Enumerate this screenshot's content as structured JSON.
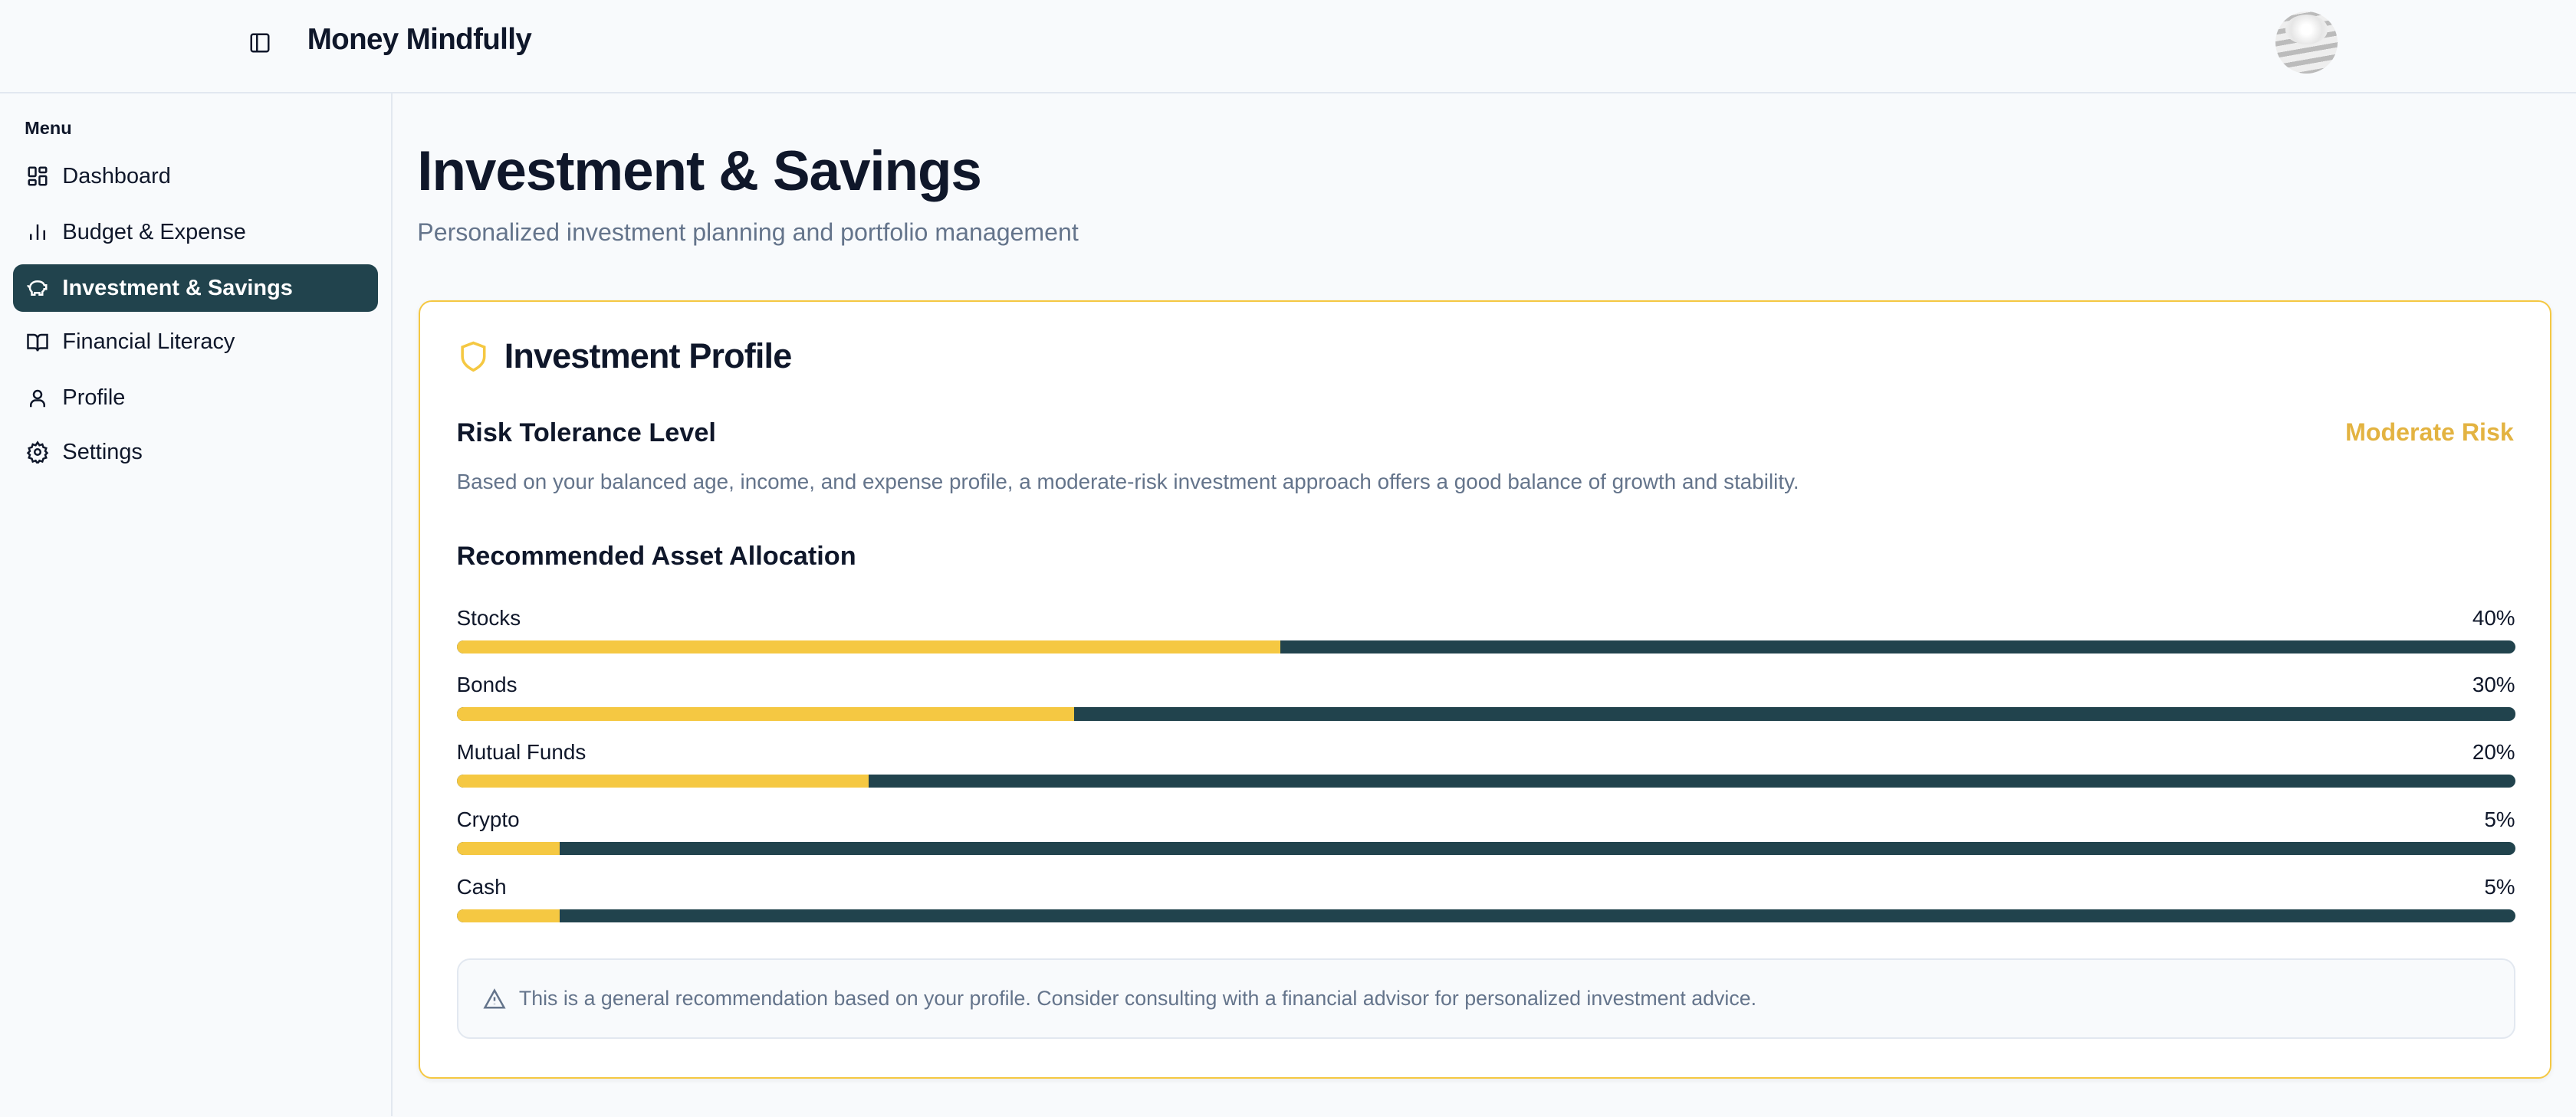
{
  "header": {
    "title": "Money Mindfully",
    "toggle_icon": "sidebar-toggle-icon",
    "avatar": "user-avatar"
  },
  "sidebar": {
    "menu_label": "Menu",
    "items": [
      {
        "label": "Dashboard",
        "icon": "dashboard-icon",
        "active": false
      },
      {
        "label": "Budget & Expense",
        "icon": "bar-chart-icon",
        "active": false
      },
      {
        "label": "Investment & Savings",
        "icon": "piggy-bank-icon",
        "active": true
      },
      {
        "label": "Financial Literacy",
        "icon": "book-icon",
        "active": false
      },
      {
        "label": "Profile",
        "icon": "user-icon",
        "active": false
      },
      {
        "label": "Settings",
        "icon": "gear-icon",
        "active": false
      }
    ]
  },
  "main": {
    "title": "Investment & Savings",
    "subtitle": "Personalized investment planning and portfolio management"
  },
  "profile": {
    "title": "Investment Profile",
    "risk_label": "Risk Tolerance Level",
    "risk_value": "Moderate Risk",
    "risk_description": "Based on your balanced age, income, and expense profile, a moderate-risk investment approach offers a good balance of growth and stability.",
    "allocation_title": "Recommended Asset Allocation",
    "allocations": [
      {
        "name": "Stocks",
        "percent_label": "40%",
        "percent": 40
      },
      {
        "name": "Bonds",
        "percent_label": "30%",
        "percent": 30
      },
      {
        "name": "Mutual Funds",
        "percent_label": "20%",
        "percent": 20
      },
      {
        "name": "Crypto",
        "percent_label": "5%",
        "percent": 5
      },
      {
        "name": "Cash",
        "percent_label": "5%",
        "percent": 5
      }
    ],
    "note": "This is a general recommendation based on your profile. Consider consulting with a financial advisor for personalized investment advice."
  },
  "colors": {
    "accent": "#f5c842",
    "primary": "#21434d",
    "risk": "#e3b341",
    "muted": "#64748b"
  }
}
